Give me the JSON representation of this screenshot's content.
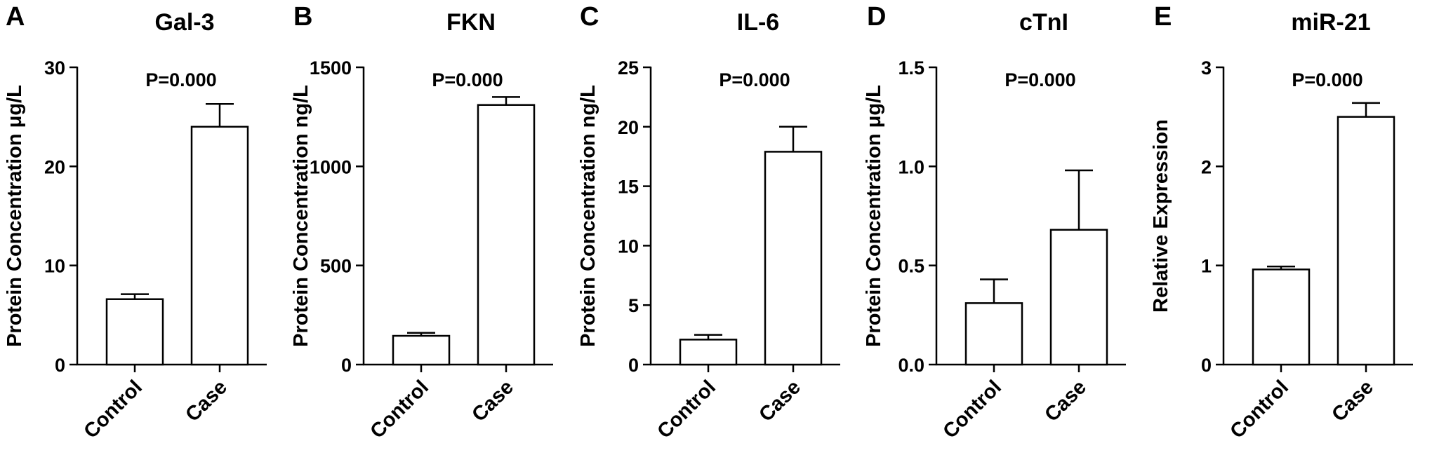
{
  "chart_data": [
    {
      "type": "bar",
      "panel_letter": "A",
      "title": "Gal-3",
      "ylabel": "Protein Concentration μg/L",
      "categories": [
        "Control",
        "Case"
      ],
      "values": [
        6.6,
        24.0
      ],
      "error_upper": [
        7.1,
        26.3
      ],
      "annotation": "P=0.000",
      "ylim": [
        0,
        30
      ],
      "yticks": [
        0,
        10,
        20,
        30
      ],
      "ytick_labels": [
        "0",
        "10",
        "20",
        "30"
      ]
    },
    {
      "type": "bar",
      "panel_letter": "B",
      "title": "FKN",
      "ylabel": "Protein Concentration ng/L",
      "categories": [
        "Control",
        "Case"
      ],
      "values": [
        145,
        1310
      ],
      "error_upper": [
        160,
        1350
      ],
      "annotation": "P=0.000",
      "ylim": [
        0,
        1500
      ],
      "yticks": [
        0,
        500,
        1000,
        1500
      ],
      "ytick_labels": [
        "0",
        "500",
        "1000",
        "1500"
      ]
    },
    {
      "type": "bar",
      "panel_letter": "C",
      "title": "IL-6",
      "ylabel": "Protein Concentration ng/L",
      "categories": [
        "Control",
        "Case"
      ],
      "values": [
        2.1,
        17.9
      ],
      "error_upper": [
        2.5,
        20.0
      ],
      "annotation": "P=0.000",
      "ylim": [
        0,
        25
      ],
      "yticks": [
        0,
        5,
        10,
        15,
        20,
        25
      ],
      "ytick_labels": [
        "0",
        "5",
        "10",
        "15",
        "20",
        "25"
      ]
    },
    {
      "type": "bar",
      "panel_letter": "D",
      "title": "cTnI",
      "ylabel": "Protein Concentration μg/L",
      "categories": [
        "Control",
        "Case"
      ],
      "values": [
        0.31,
        0.68
      ],
      "error_upper": [
        0.43,
        0.98
      ],
      "annotation": "P=0.000",
      "ylim": [
        0,
        1.5
      ],
      "yticks": [
        0,
        0.5,
        1.0,
        1.5
      ],
      "ytick_labels": [
        "0.0",
        "0.5",
        "1.0",
        "1.5"
      ]
    },
    {
      "type": "bar",
      "panel_letter": "E",
      "title": "miR-21",
      "ylabel": "Relative Expression",
      "categories": [
        "Control",
        "Case"
      ],
      "values": [
        0.96,
        2.5
      ],
      "error_upper": [
        0.99,
        2.64
      ],
      "annotation": "P=0.000",
      "ylim": [
        0,
        3
      ],
      "yticks": [
        0,
        1,
        2,
        3
      ],
      "ytick_labels": [
        "0",
        "1",
        "2",
        "3"
      ]
    }
  ]
}
